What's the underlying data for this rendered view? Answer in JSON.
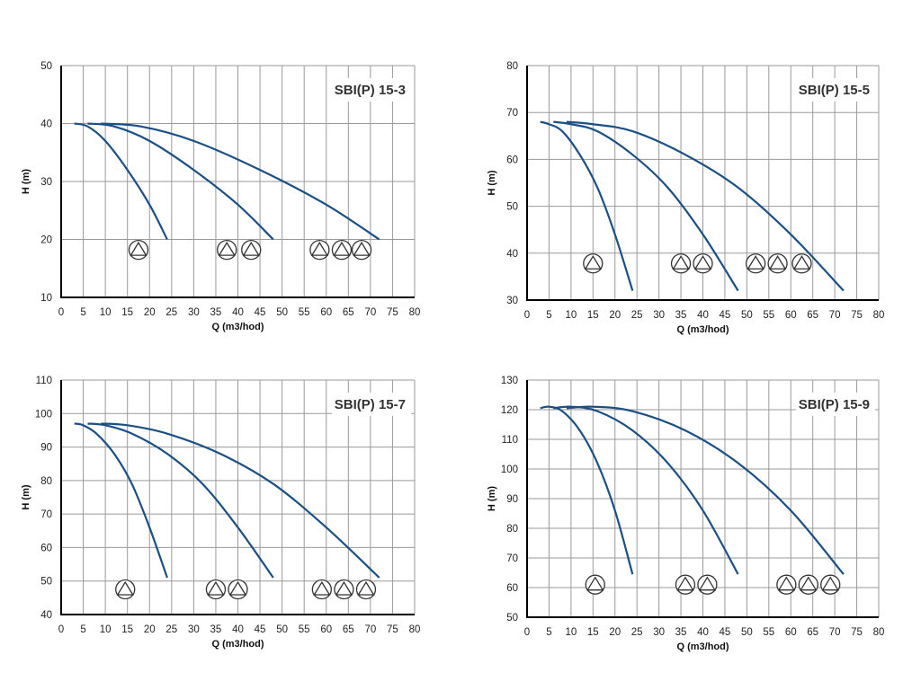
{
  "chart_data": [
    {
      "type": "line",
      "title": "SBI(P) 15-3",
      "xlabel": "Q (m3/hod)",
      "ylabel": "H (m)",
      "xlim": [
        0,
        80
      ],
      "xticks": [
        0,
        5,
        10,
        15,
        20,
        25,
        30,
        35,
        40,
        45,
        50,
        55,
        60,
        65,
        70,
        75,
        80
      ],
      "ylim": [
        10,
        50
      ],
      "yticks": [
        10,
        20,
        30,
        40,
        50
      ],
      "grid": true,
      "series": [
        {
          "name": "1 pump",
          "x": [
            3,
            6,
            10,
            15,
            20,
            24
          ],
          "y": [
            40,
            39.5,
            37,
            32,
            26,
            20
          ]
        },
        {
          "name": "2 pumps",
          "x": [
            6,
            12,
            20,
            30,
            40,
            48
          ],
          "y": [
            40,
            39.5,
            37,
            32,
            26,
            20
          ]
        },
        {
          "name": "3 pumps",
          "x": [
            9,
            18,
            30,
            45,
            60,
            72
          ],
          "y": [
            40,
            39.5,
            37,
            32,
            26,
            20
          ]
        }
      ],
      "pump_symbols": {
        "h": 18.2,
        "q": [
          17.5,
          37.5,
          43,
          58.5,
          63.5,
          68
        ]
      }
    },
    {
      "type": "line",
      "title": "SBI(P) 15-5",
      "xlabel": "Q (m3/hod)",
      "ylabel": "H (m)",
      "xlim": [
        0,
        80
      ],
      "xticks": [
        0,
        5,
        10,
        15,
        20,
        25,
        30,
        35,
        40,
        45,
        50,
        55,
        60,
        65,
        70,
        75,
        80
      ],
      "ylim": [
        30,
        80
      ],
      "yticks": [
        30,
        40,
        50,
        60,
        70,
        80
      ],
      "grid": true,
      "series": [
        {
          "name": "1 pump",
          "x": [
            3,
            5,
            8,
            12,
            16,
            20,
            24
          ],
          "y": [
            68,
            67.5,
            66,
            61,
            54,
            44,
            32
          ]
        },
        {
          "name": "2 pumps",
          "x": [
            6,
            10,
            16,
            24,
            32,
            40,
            48
          ],
          "y": [
            68,
            67.5,
            66,
            61,
            54,
            44,
            32
          ]
        },
        {
          "name": "3 pumps",
          "x": [
            9,
            15,
            24,
            36,
            48,
            60,
            72
          ],
          "y": [
            68,
            67.5,
            66,
            61,
            54,
            44,
            32
          ]
        }
      ],
      "pump_symbols": {
        "h": 37.8,
        "q": [
          15,
          35,
          40,
          52,
          57,
          62.5
        ]
      }
    },
    {
      "type": "line",
      "title": "SBI(P) 15-7",
      "xlabel": "Q (m3/hod)",
      "ylabel": "H (m)",
      "xlim": [
        0,
        80
      ],
      "xticks": [
        0,
        5,
        10,
        15,
        20,
        25,
        30,
        35,
        40,
        45,
        50,
        55,
        60,
        65,
        70,
        75,
        80
      ],
      "ylim": [
        40,
        110
      ],
      "yticks": [
        40,
        50,
        60,
        70,
        80,
        90,
        100,
        110
      ],
      "grid": true,
      "series": [
        {
          "name": "1 pump",
          "x": [
            3,
            5,
            8,
            12,
            16,
            20,
            24
          ],
          "y": [
            97,
            96.5,
            94,
            88,
            79,
            66,
            51
          ]
        },
        {
          "name": "2 pumps",
          "x": [
            6,
            10,
            16,
            24,
            32,
            40,
            48
          ],
          "y": [
            97,
            96.5,
            94,
            88,
            79,
            66,
            51
          ]
        },
        {
          "name": "3 pumps",
          "x": [
            9,
            15,
            24,
            36,
            48,
            60,
            72
          ],
          "y": [
            97,
            96.5,
            94,
            88,
            79,
            66,
            51
          ]
        }
      ],
      "pump_symbols": {
        "h": 47.5,
        "q": [
          14.5,
          35,
          40,
          59,
          64,
          69
        ]
      }
    },
    {
      "type": "line",
      "title": "SBI(P) 15-9",
      "xlabel": "Q (m3/hod)",
      "ylabel": "H (m)",
      "xlim": [
        0,
        80
      ],
      "xticks": [
        0,
        5,
        10,
        15,
        20,
        25,
        30,
        35,
        40,
        45,
        50,
        55,
        60,
        65,
        70,
        75,
        80
      ],
      "ylim": [
        50,
        130
      ],
      "yticks": [
        50,
        60,
        70,
        80,
        90,
        100,
        110,
        120,
        130
      ],
      "grid": true,
      "series": [
        {
          "name": "1 pump",
          "x": [
            3,
            5,
            8,
            12,
            16,
            20,
            24
          ],
          "y": [
            120.5,
            121,
            119.5,
            113,
            102,
            86,
            64.5
          ]
        },
        {
          "name": "2 pumps",
          "x": [
            6,
            10,
            16,
            24,
            32,
            40,
            48
          ],
          "y": [
            120.5,
            121,
            119.5,
            113,
            102,
            86,
            64.5
          ]
        },
        {
          "name": "3 pumps",
          "x": [
            9,
            15,
            24,
            36,
            48,
            60,
            72
          ],
          "y": [
            120.5,
            121,
            119.5,
            113,
            102,
            86,
            64.5
          ]
        }
      ],
      "pump_symbols": {
        "h": 61,
        "q": [
          15.5,
          36,
          41,
          59,
          64,
          69
        ]
      }
    }
  ],
  "colors": {
    "curve": "#1c4f84",
    "grid": "#9a9a9a",
    "axis": "#000000",
    "symbol": "#333333"
  }
}
